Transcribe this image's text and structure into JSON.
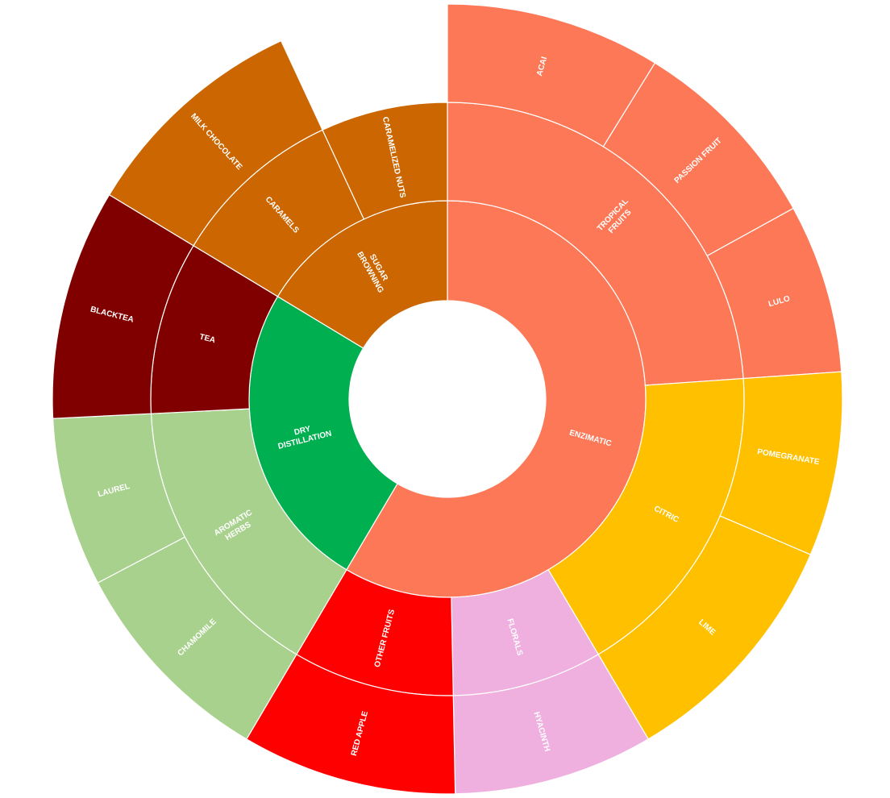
{
  "chart_data": {
    "type": "sunburst",
    "title": "",
    "children": [
      {
        "name": "ENZIMATIC",
        "color": "#FC7857",
        "children": [
          {
            "name": "TROPICAL\nFRUITS",
            "color": "#FC7857",
            "children": [
              {
                "name": "ACAI",
                "color": "#FC7857",
                "value": 7
              },
              {
                "name": "PASSION FRUIT",
                "color": "#FC7857",
                "value": 6.5
              },
              {
                "name": "LULO",
                "color": "#FC7857",
                "value": 5.5
              }
            ]
          },
          {
            "name": "CITRIC",
            "color": "#FFC000",
            "children": [
              {
                "name": "POMEGRANATE",
                "color": "#FFC000",
                "value": 6
              },
              {
                "name": "LIME",
                "color": "#FFC000",
                "value": 8
              }
            ]
          },
          {
            "name": "FLORALS",
            "color": "#EFB0DF",
            "children": [
              {
                "name": "HYACINTH",
                "color": "#EFB0DF",
                "value": 6.5
              }
            ]
          },
          {
            "name": "OTHER FRUITS",
            "color": "#FF0000",
            "children": [
              {
                "name": "RED APPLE",
                "color": "#FF0000",
                "value": 7
              }
            ]
          }
        ]
      },
      {
        "name": "DRY\nDISTILLATION",
        "color": "#00B050",
        "children": [
          {
            "name": "AROMATIC\nHERBS",
            "color": "#A9D18E",
            "children": [
              {
                "name": "CHAMOMILE",
                "color": "#A9D18E",
                "value": 7
              },
              {
                "name": "LAUREL",
                "color": "#A9D18E",
                "value": 5.5
              }
            ]
          },
          {
            "name": "TEA",
            "color": "#800000",
            "children": [
              {
                "name": "BLACKTEA",
                "color": "#800000",
                "value": 7.5
              }
            ]
          }
        ]
      },
      {
        "name": "SUGAR\nBROWNING",
        "color": "#CC6600",
        "children": [
          {
            "name": "CARAMELS",
            "color": "#CC6600",
            "children": [
              {
                "name": "MILK CHOCOLATE",
                "color": "#CC6600",
                "value": 7.5
              }
            ]
          },
          {
            "name": "CARAMELIZED NUTS",
            "color": "#CC6600",
            "value": 5.5
          }
        ]
      }
    ]
  }
}
